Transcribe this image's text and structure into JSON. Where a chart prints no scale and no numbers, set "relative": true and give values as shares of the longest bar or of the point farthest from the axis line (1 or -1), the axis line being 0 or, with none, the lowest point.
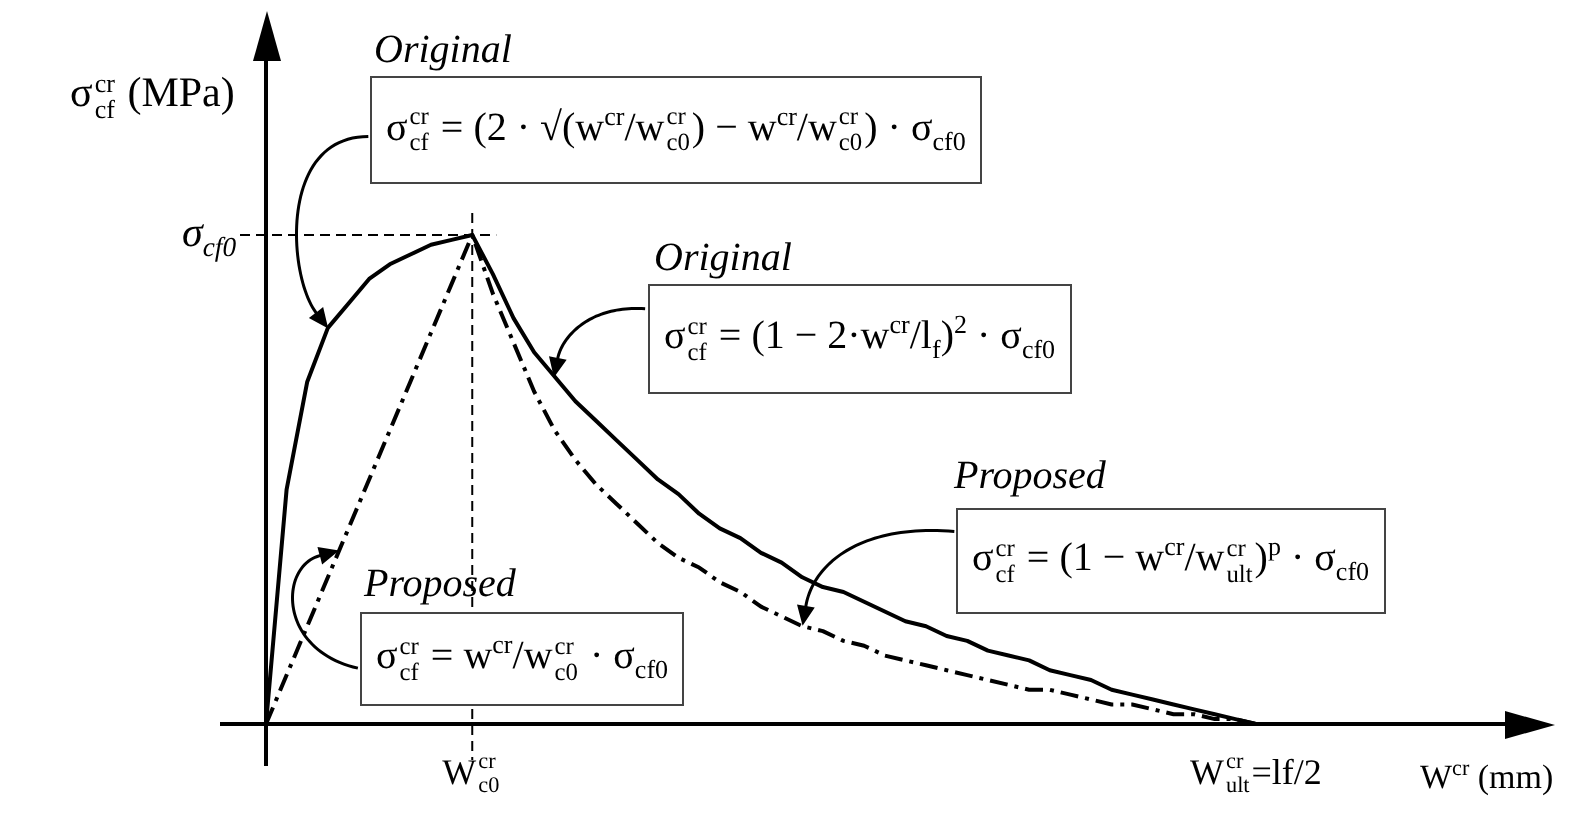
{
  "chart_data": {
    "type": "line",
    "xlabel": "W$^{cr}$ (mm)",
    "ylabel": "σ$_{cf}$$^{cr}$ (MPa)",
    "relative": true,
    "categories": [
      null,
      null,
      null,
      null,
      null,
      null,
      null,
      null,
      null,
      null,
      "W$_{c0}$$^{cr}$",
      null,
      null,
      null,
      null,
      null,
      null,
      null,
      null,
      null,
      null,
      null,
      null,
      null,
      null,
      null,
      null,
      null,
      null,
      null,
      null,
      null,
      null,
      null,
      null,
      null,
      null,
      null,
      null,
      null,
      null,
      null,
      null,
      null,
      null,
      null,
      null,
      null,
      "W$_{ult}$$^{cr}$=lf/2"
    ],
    "series": [
      {
        "color": "#000000",
        "line_style": "solid",
        "values": [
          0,
          0.48,
          0.7,
          0.81,
          0.86,
          0.91,
          0.94,
          0.96,
          0.98,
          0.99,
          1,
          0.92,
          0.83,
          0.76,
          0.71,
          0.66,
          0.62,
          0.58,
          0.54,
          0.5,
          0.47,
          0.43,
          0.4,
          0.38,
          0.35,
          0.33,
          0.3,
          0.28,
          0.27,
          0.25,
          0.23,
          0.21,
          0.2,
          0.18,
          0.17,
          0.15,
          0.14,
          0.13,
          0.11,
          0.1,
          0.09,
          0.07,
          0.06,
          0.05,
          0.04,
          0.03,
          0.02,
          0.01,
          0
        ]
      },
      {
        "color": "#000000",
        "line_style": "dashdot",
        "values": [
          0,
          0.1,
          0.2,
          0.3,
          0.4,
          0.5,
          0.6,
          0.7,
          0.8,
          0.9,
          1,
          0.88,
          0.78,
          0.68,
          0.6,
          0.54,
          0.49,
          0.45,
          0.41,
          0.37,
          0.34,
          0.32,
          0.29,
          0.27,
          0.24,
          0.22,
          0.2,
          0.19,
          0.17,
          0.16,
          0.14,
          0.13,
          0.12,
          0.11,
          0.1,
          0.09,
          0.08,
          0.07,
          0.07,
          0.06,
          0.05,
          0.04,
          0.04,
          0.03,
          0.02,
          0.02,
          0.01,
          0.01,
          0
        ]
      }
    ],
    "ref_lines": [
      {
        "axis": "y",
        "value": 1,
        "label": "σ$_{cf0}$",
        "line_style": "dashed"
      },
      {
        "axis": "x",
        "value": "W$_{c0}$$^{cr}$",
        "line_style": "dashed"
      }
    ],
    "annotations": [
      "Original",
      "σ$_{cf}$$^{cr}$ = (2 · √(w$^{cr}$/w$_{c0}$$^{cr}$) − w$^{cr}$/w$_{c0}$$^{cr}$) · σ$_{cf0}$",
      "Original",
      "σ$_{cf}$$^{cr}$ = (1 − 2·w$^{cr}$/l$_{f}$)$^{2}$ · σ$_{cf0}$",
      "Proposed",
      "σ$_{cf}$$^{cr}$ = (1 − w$^{cr}$/w$_{ult}$$^{cr}$)$^{p}$ · σ$_{cf0}$",
      "Proposed",
      "σ$_{cf}$$^{cr}$ = w$^{cr}$/w$_{c0}$$^{cr}$ · σ$_{cf0}$"
    ]
  }
}
